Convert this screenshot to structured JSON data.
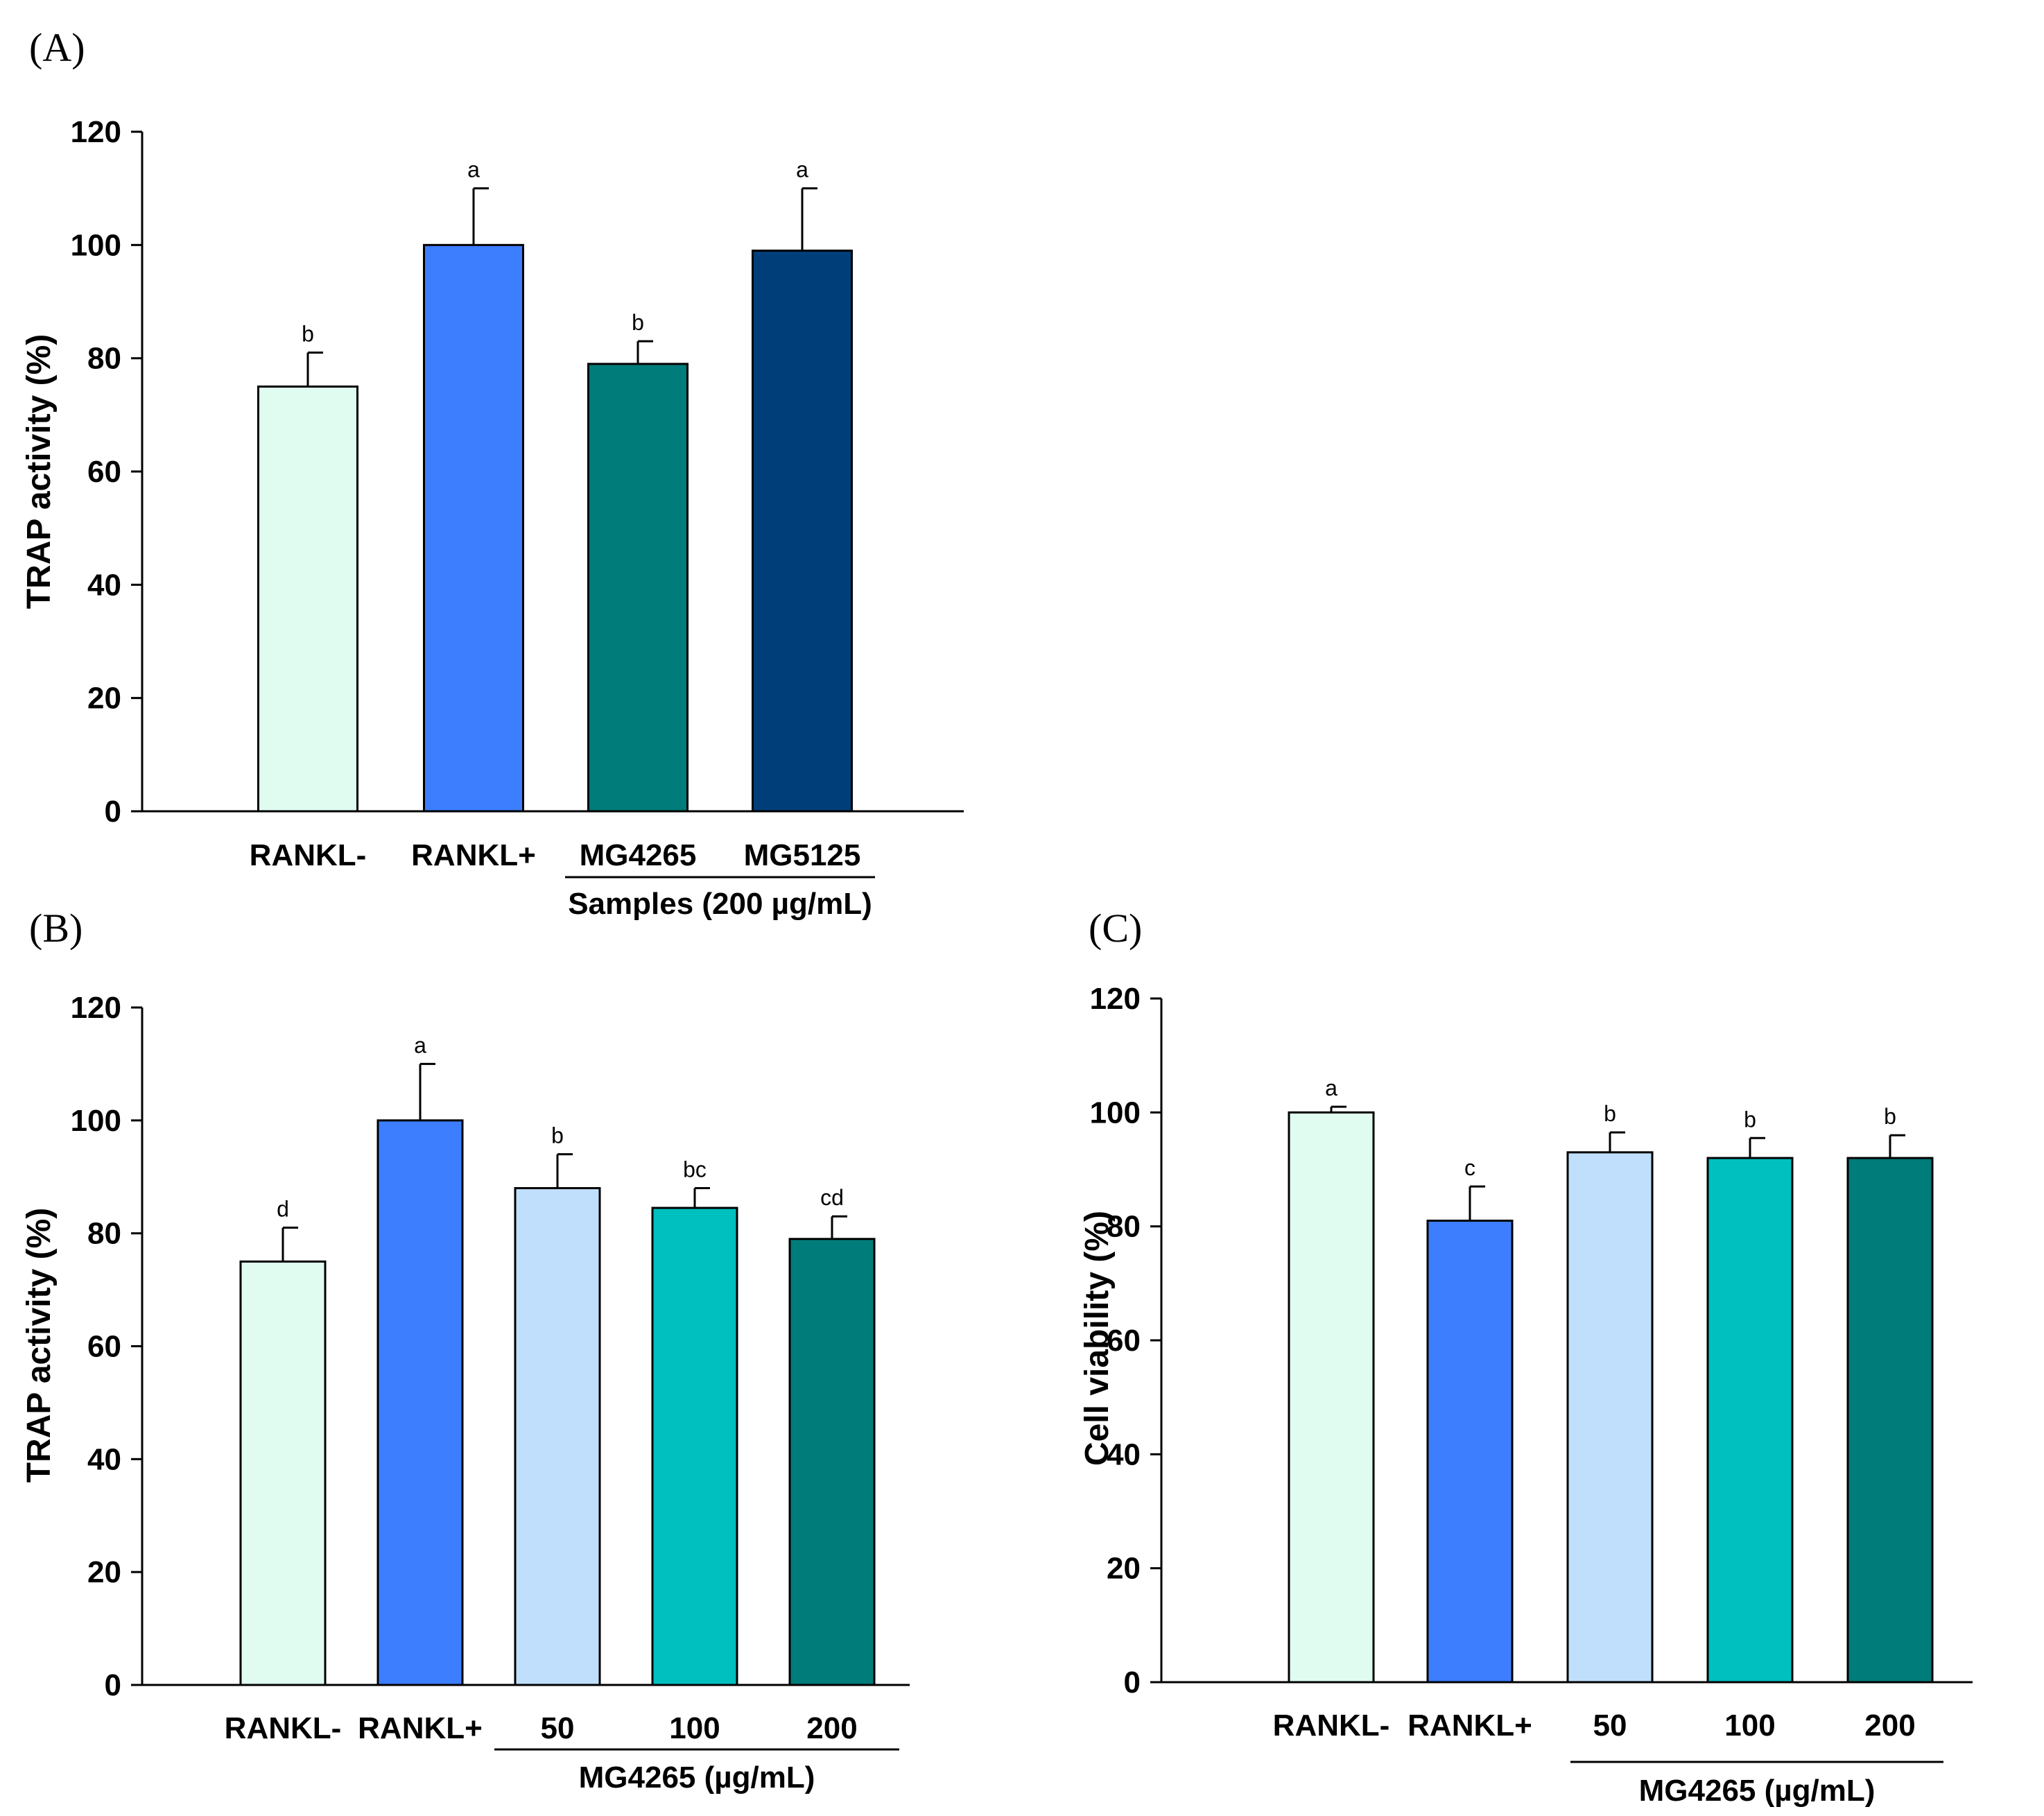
{
  "chart_data": [
    {
      "panel": "(A)",
      "type": "bar",
      "ylabel": "TRAP activity (%)",
      "xlabel": "",
      "ylim": [
        0,
        120
      ],
      "yticks": [
        0,
        20,
        40,
        60,
        80,
        100,
        120
      ],
      "categories": [
        "RANKL-",
        "RANKL+",
        "MG4265",
        "MG5125"
      ],
      "values": [
        75,
        100,
        79,
        99
      ],
      "errors": [
        6,
        10,
        4,
        11
      ],
      "significance": [
        "b",
        "a",
        "b",
        "a"
      ],
      "colors": [
        "#e0fcf0",
        "#3d7efe",
        "#007c7a",
        "#003e7a"
      ],
      "group_label": "Samples (200 µg/mL)",
      "group_span": [
        2,
        3
      ]
    },
    {
      "panel": "(B)",
      "type": "bar",
      "ylabel": "TRAP activity (%)",
      "xlabel": "",
      "ylim": [
        0,
        120
      ],
      "yticks": [
        0,
        20,
        40,
        60,
        80,
        100,
        120
      ],
      "categories": [
        "RANKL-",
        "RANKL+",
        "50",
        "100",
        "200"
      ],
      "values": [
        75,
        100,
        88,
        84.5,
        79
      ],
      "errors": [
        6,
        10,
        6,
        3.5,
        4
      ],
      "significance": [
        "d",
        "a",
        "b",
        "bc",
        "cd"
      ],
      "colors": [
        "#e0fcf0",
        "#3d7efe",
        "#bfdffd",
        "#00bfbf",
        "#007c7a"
      ],
      "group_label": "MG4265 (µg/mL)",
      "group_span": [
        2,
        4
      ]
    },
    {
      "panel": "(C)",
      "type": "bar",
      "ylabel": "Cell viability (%)",
      "xlabel": "",
      "ylim": [
        0,
        120
      ],
      "yticks": [
        0,
        20,
        40,
        60,
        80,
        100,
        120
      ],
      "categories": [
        "RANKL-",
        "RANKL+",
        "50",
        "100",
        "200"
      ],
      "values": [
        100,
        81,
        93,
        92,
        92
      ],
      "errors": [
        1,
        6,
        3.5,
        3.5,
        4
      ],
      "significance": [
        "a",
        "c",
        "b",
        "b",
        "b"
      ],
      "colors": [
        "#e0fcf0",
        "#3d7efe",
        "#bfdffd",
        "#00bfbf",
        "#007c7a"
      ],
      "group_label": "MG4265 (µg/mL)",
      "group_span": [
        2,
        4
      ]
    }
  ]
}
